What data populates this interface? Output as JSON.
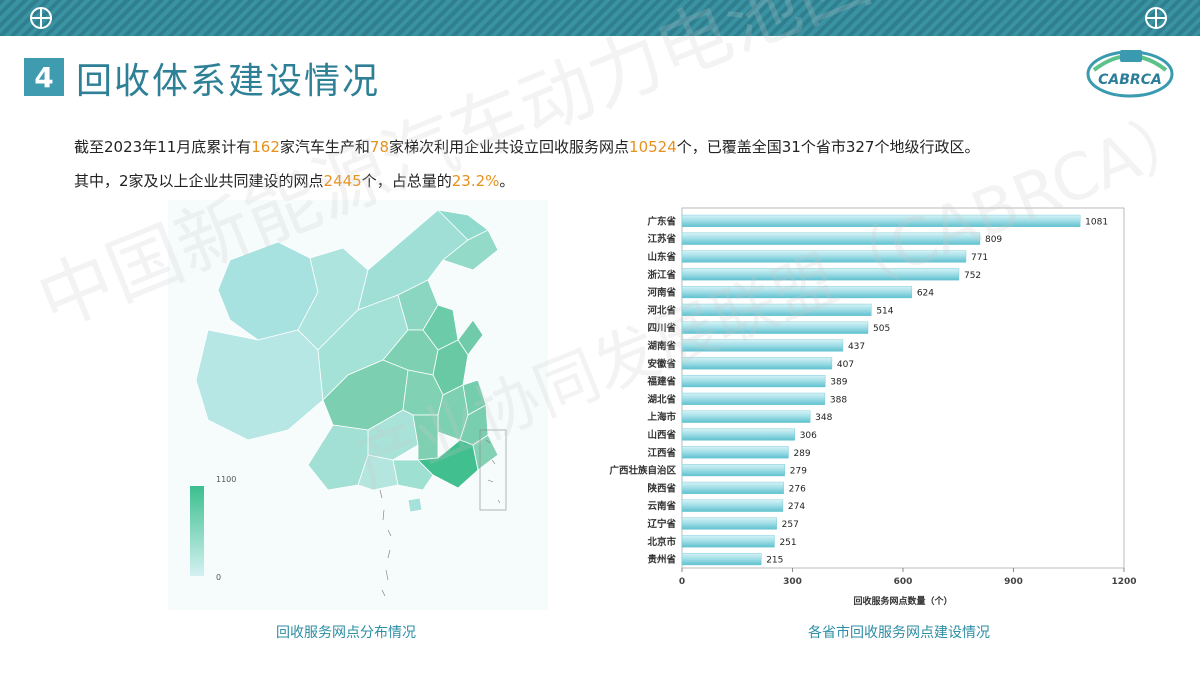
{
  "header": {
    "section_number": "4",
    "title": "回收体系建设情况"
  },
  "logo": {
    "text": "CABRCA"
  },
  "watermark": {
    "line1": "中国新能源汽车动力电池回收利用",
    "line2": "产业协同发展联盟（CABRCA）"
  },
  "summary": {
    "line1": {
      "p1": "截至2023年11月底累计有",
      "v1": "162",
      "p2": "家汽车生产和",
      "v2": "78",
      "p3": "家梯次利用企业共设立回收服务网点",
      "v3": "10524",
      "p4": "个，已覆盖全国31个省市327个地级行政区。"
    },
    "line2": {
      "p1": "其中，2家及以上企业共同建设的网点",
      "v1": "2445",
      "p2": "个，占总量的",
      "v2": "23.2%",
      "p3": "。"
    }
  },
  "map": {
    "caption": "回收服务网点分布情况",
    "legend_max": "1100",
    "legend_min": "0",
    "color_low": "#c9eeee",
    "color_high": "#3bbf8e"
  },
  "chart_caption": "各省市回收服务网点建设情况",
  "chart_data": {
    "type": "bar",
    "orientation": "horizontal",
    "categories": [
      "广东省",
      "江苏省",
      "山东省",
      "浙江省",
      "河南省",
      "河北省",
      "四川省",
      "湖南省",
      "安徽省",
      "福建省",
      "湖北省",
      "上海市",
      "山西省",
      "江西省",
      "广西壮族自治区",
      "陕西省",
      "云南省",
      "辽宁省",
      "北京市",
      "贵州省"
    ],
    "values": [
      1081,
      809,
      771,
      752,
      624,
      514,
      505,
      437,
      407,
      389,
      388,
      348,
      306,
      289,
      279,
      276,
      274,
      257,
      251,
      215
    ],
    "xlabel": "回收服务网点数量（个）",
    "ylabel": "",
    "xlim": [
      0,
      1200
    ],
    "xticks": [
      0,
      300,
      600,
      900,
      1200
    ],
    "bar_color": "#8fd9e2",
    "grid": false
  }
}
